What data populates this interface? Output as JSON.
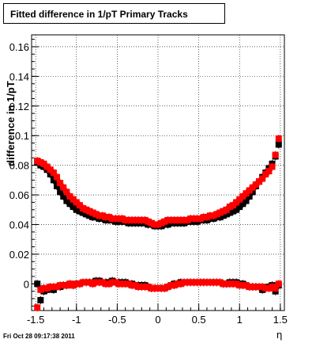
{
  "title": "Fitted difference in 1/pT  Primary Tracks",
  "footer": "Fri Oct 28 09:17:38 2011",
  "chart_data": {
    "type": "scatter",
    "title": "Fitted difference in 1/pT  Primary Tracks",
    "xlabel": "η",
    "ylabel": "difference in 1/pT",
    "xlim": [
      -1.55,
      1.55
    ],
    "ylim": [
      -0.018,
      0.168
    ],
    "xticks": [
      "-1.5",
      "-1",
      "-0.5",
      "0",
      "0.5",
      "1",
      "1.5"
    ],
    "yticks": [
      "0",
      "0.02",
      "0.04",
      "0.06",
      "0.08",
      "0.1",
      "0.12",
      "0.14",
      "0.16"
    ],
    "grid": true,
    "series": [
      {
        "color": "#000000",
        "x": [
          -1.48,
          -1.44,
          -1.4,
          -1.36,
          -1.32,
          -1.28,
          -1.24,
          -1.2,
          -1.16,
          -1.12,
          -1.08,
          -1.04,
          -1.0,
          -0.96,
          -0.92,
          -0.88,
          -0.84,
          -0.8,
          -0.76,
          -0.72,
          -0.68,
          -0.64,
          -0.6,
          -0.56,
          -0.52,
          -0.48,
          -0.44,
          -0.4,
          -0.36,
          -0.32,
          -0.28,
          -0.24,
          -0.2,
          -0.16,
          -0.12,
          -0.08,
          -0.04,
          0.0,
          0.04,
          0.08,
          0.12,
          0.16,
          0.2,
          0.24,
          0.28,
          0.32,
          0.36,
          0.4,
          0.44,
          0.48,
          0.52,
          0.56,
          0.6,
          0.64,
          0.68,
          0.72,
          0.76,
          0.8,
          0.84,
          0.88,
          0.92,
          0.96,
          1.0,
          1.04,
          1.08,
          1.12,
          1.16,
          1.2,
          1.24,
          1.28,
          1.32,
          1.36,
          1.4,
          1.44,
          1.48
        ],
        "y": [
          0.082,
          0.08,
          0.079,
          0.077,
          0.074,
          0.07,
          0.066,
          0.062,
          0.059,
          0.056,
          0.054,
          0.052,
          0.05,
          0.049,
          0.048,
          0.047,
          0.046,
          0.045,
          0.045,
          0.044,
          0.044,
          0.043,
          0.043,
          0.043,
          0.042,
          0.042,
          0.042,
          0.042,
          0.041,
          0.041,
          0.041,
          0.041,
          0.041,
          0.041,
          0.04,
          0.04,
          0.039,
          0.039,
          0.039,
          0.04,
          0.04,
          0.041,
          0.041,
          0.041,
          0.041,
          0.041,
          0.042,
          0.042,
          0.042,
          0.042,
          0.043,
          0.043,
          0.043,
          0.044,
          0.044,
          0.045,
          0.045,
          0.046,
          0.047,
          0.048,
          0.049,
          0.05,
          0.052,
          0.054,
          0.056,
          0.059,
          0.062,
          0.066,
          0.069,
          0.072,
          0.075,
          0.078,
          0.081,
          0.086,
          0.094
        ]
      },
      {
        "color": "#ff0000",
        "x": [
          -1.48,
          -1.44,
          -1.4,
          -1.36,
          -1.32,
          -1.28,
          -1.24,
          -1.2,
          -1.16,
          -1.12,
          -1.08,
          -1.04,
          -1.0,
          -0.96,
          -0.92,
          -0.88,
          -0.84,
          -0.8,
          -0.76,
          -0.72,
          -0.68,
          -0.64,
          -0.6,
          -0.56,
          -0.52,
          -0.48,
          -0.44,
          -0.4,
          -0.36,
          -0.32,
          -0.28,
          -0.24,
          -0.2,
          -0.16,
          -0.12,
          -0.08,
          -0.04,
          0.0,
          0.04,
          0.08,
          0.12,
          0.16,
          0.2,
          0.24,
          0.28,
          0.32,
          0.36,
          0.4,
          0.44,
          0.48,
          0.52,
          0.56,
          0.6,
          0.64,
          0.68,
          0.72,
          0.76,
          0.8,
          0.84,
          0.88,
          0.92,
          0.96,
          1.0,
          1.04,
          1.08,
          1.12,
          1.16,
          1.2,
          1.24,
          1.28,
          1.32,
          1.36,
          1.4,
          1.44,
          1.48
        ],
        "y": [
          0.083,
          0.082,
          0.081,
          0.079,
          0.077,
          0.075,
          0.072,
          0.068,
          0.065,
          0.062,
          0.059,
          0.057,
          0.055,
          0.053,
          0.051,
          0.05,
          0.049,
          0.048,
          0.047,
          0.046,
          0.046,
          0.045,
          0.045,
          0.044,
          0.044,
          0.044,
          0.044,
          0.043,
          0.043,
          0.043,
          0.043,
          0.043,
          0.043,
          0.043,
          0.042,
          0.041,
          0.04,
          0.04,
          0.041,
          0.042,
          0.043,
          0.043,
          0.043,
          0.043,
          0.043,
          0.043,
          0.043,
          0.044,
          0.044,
          0.044,
          0.044,
          0.045,
          0.045,
          0.046,
          0.046,
          0.047,
          0.048,
          0.049,
          0.05,
          0.052,
          0.053,
          0.055,
          0.057,
          0.059,
          0.061,
          0.063,
          0.065,
          0.067,
          0.069,
          0.071,
          0.074,
          0.076,
          0.079,
          0.087,
          0.098
        ]
      },
      {
        "color": "#000000",
        "x": [
          -1.48,
          -1.44,
          -1.4,
          -1.36,
          -1.32,
          -1.28,
          -1.24,
          -1.2,
          -1.16,
          -1.12,
          -1.08,
          -1.04,
          -1.0,
          -0.96,
          -0.92,
          -0.88,
          -0.84,
          -0.8,
          -0.76,
          -0.72,
          -0.68,
          -0.64,
          -0.6,
          -0.56,
          -0.52,
          -0.48,
          -0.44,
          -0.4,
          -0.36,
          -0.32,
          -0.28,
          -0.24,
          -0.2,
          -0.16,
          -0.12,
          -0.08,
          -0.04,
          0.0,
          0.04,
          0.08,
          0.12,
          0.16,
          0.2,
          0.24,
          0.28,
          0.32,
          0.36,
          0.4,
          0.44,
          0.48,
          0.52,
          0.56,
          0.6,
          0.64,
          0.68,
          0.72,
          0.76,
          0.8,
          0.84,
          0.88,
          0.92,
          0.96,
          1.0,
          1.04,
          1.08,
          1.12,
          1.16,
          1.2,
          1.24,
          1.28,
          1.32,
          1.36,
          1.4,
          1.44,
          1.48
        ],
        "y": [
          0.0,
          -0.011,
          -0.005,
          -0.004,
          -0.003,
          -0.004,
          -0.002,
          -0.002,
          -0.001,
          -0.001,
          0.0,
          -0.001,
          0.0,
          0.0,
          0.001,
          0.001,
          0.001,
          0.001,
          0.002,
          0.002,
          0.001,
          0.001,
          0.001,
          0.002,
          0.001,
          0.001,
          0.001,
          0.001,
          0.0,
          0.0,
          -0.001,
          -0.001,
          -0.001,
          -0.001,
          -0.002,
          -0.003,
          -0.003,
          -0.003,
          -0.003,
          -0.003,
          -0.002,
          -0.001,
          0.0,
          0.0,
          0.001,
          0.001,
          0.001,
          0.001,
          0.001,
          0.001,
          0.001,
          0.001,
          0.001,
          0.001,
          0.001,
          0.001,
          0.001,
          0.0,
          0.0,
          0.001,
          0.001,
          0.001,
          0.0,
          0.0,
          -0.001,
          -0.002,
          -0.002,
          -0.002,
          -0.002,
          -0.004,
          -0.003,
          -0.002,
          -0.001,
          -0.005,
          -0.001
        ]
      },
      {
        "color": "#ff0000",
        "x": [
          -1.48,
          -1.44,
          -1.4,
          -1.36,
          -1.32,
          -1.28,
          -1.24,
          -1.2,
          -1.16,
          -1.12,
          -1.08,
          -1.04,
          -1.0,
          -0.96,
          -0.92,
          -0.88,
          -0.84,
          -0.8,
          -0.76,
          -0.72,
          -0.68,
          -0.64,
          -0.6,
          -0.56,
          -0.52,
          -0.48,
          -0.44,
          -0.4,
          -0.36,
          -0.32,
          -0.28,
          -0.24,
          -0.2,
          -0.16,
          -0.12,
          -0.08,
          -0.04,
          0.0,
          0.04,
          0.08,
          0.12,
          0.16,
          0.2,
          0.24,
          0.28,
          0.32,
          0.36,
          0.4,
          0.44,
          0.48,
          0.52,
          0.56,
          0.6,
          0.64,
          0.68,
          0.72,
          0.76,
          0.8,
          0.84,
          0.88,
          0.92,
          0.96,
          1.0,
          1.04,
          1.08,
          1.12,
          1.16,
          1.2,
          1.24,
          1.28,
          1.32,
          1.36,
          1.4,
          1.44,
          1.48
        ],
        "y": [
          -0.016,
          -0.004,
          -0.003,
          -0.003,
          -0.002,
          -0.002,
          -0.002,
          -0.001,
          -0.001,
          -0.001,
          0.0,
          -0.001,
          0.0,
          0.0,
          0.001,
          0.001,
          0.001,
          0.0,
          0.001,
          0.001,
          0.001,
          0.0,
          0.0,
          0.001,
          0.001,
          0.0,
          0.0,
          0.0,
          0.0,
          -0.001,
          -0.001,
          -0.002,
          -0.002,
          -0.002,
          -0.002,
          -0.003,
          -0.003,
          -0.003,
          -0.003,
          -0.003,
          -0.002,
          -0.001,
          -0.001,
          0.0,
          0.0,
          0.001,
          0.001,
          0.001,
          0.001,
          0.001,
          0.001,
          0.001,
          0.001,
          0.001,
          0.001,
          0.001,
          0.001,
          0.0,
          0.0,
          0.0,
          0.0,
          0.0,
          -0.001,
          -0.001,
          -0.001,
          -0.002,
          -0.002,
          -0.002,
          -0.002,
          -0.002,
          -0.003,
          -0.003,
          -0.002,
          -0.003,
          0.0
        ]
      }
    ]
  }
}
